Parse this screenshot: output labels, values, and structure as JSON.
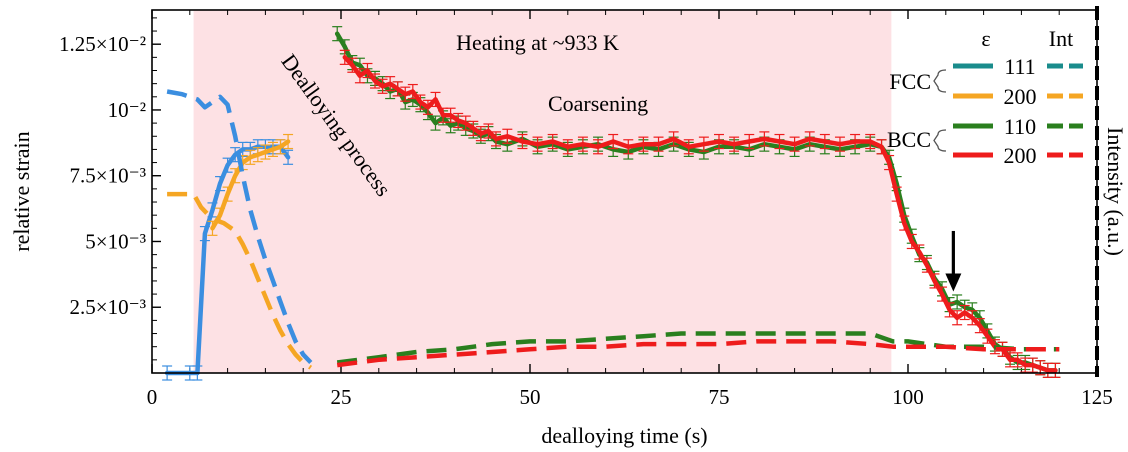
{
  "chart_data": {
    "type": "line",
    "xlabel": "dealloying time (s)",
    "ylabel": "relative strain",
    "y2label": "Intensity (a.u.)",
    "xlim": [
      0,
      125
    ],
    "ylim": [
      0,
      0.0138
    ],
    "x_ticks": [
      0,
      25,
      50,
      75,
      100,
      125
    ],
    "y_ticks": [
      {
        "value": 0.0025,
        "label": "2.5×10⁻³"
      },
      {
        "value": 0.005,
        "label": "5×10⁻³"
      },
      {
        "value": 0.0075,
        "label": "7.5×10⁻³"
      },
      {
        "value": 0.01,
        "label": "10⁻²"
      },
      {
        "value": 0.0125,
        "label": "1.25×10⁻²"
      }
    ],
    "shaded_region": {
      "x": [
        5.5,
        97.8
      ],
      "color": "#fde1e4"
    },
    "annotations": {
      "heating": "Heating at ~933 K",
      "coarsening": "Coarsening",
      "dealloying": "Dealloying process",
      "fcc": "FCC",
      "bcc": "BCC"
    },
    "arrow": {
      "x": 106,
      "y_from": 0.0054,
      "y_to": 0.0031
    },
    "legend": {
      "placement": "top-right",
      "header_strain": "ε",
      "header_int": "Int",
      "entries": [
        {
          "label": "111",
          "color": "#1a8c8c"
        },
        {
          "label": "200",
          "color": "#f5a623"
        },
        {
          "label": "110",
          "color": "#2a7f1e"
        },
        {
          "label": "200",
          "color": "#ee1c1c"
        }
      ]
    },
    "series": [
      {
        "id": "fcc111_strain",
        "color": "#3b8ee0",
        "dash": false,
        "errorbars": true,
        "x": [
          2,
          5,
          6,
          7,
          8,
          9,
          10,
          11,
          12,
          13,
          14,
          15,
          16,
          17,
          18
        ],
        "y": [
          0,
          0,
          0,
          0.0053,
          0.0062,
          0.0072,
          0.0079,
          0.0083,
          0.0085,
          0.0085,
          0.0086,
          0.0086,
          0.0086,
          0.0086,
          0.0082
        ]
      },
      {
        "id": "fcc200_strain",
        "color": "#f5a623",
        "dash": false,
        "errorbars": true,
        "x": [
          8,
          9,
          10,
          11,
          12,
          13,
          14,
          15,
          16,
          17,
          18
        ],
        "y": [
          0.0055,
          0.006,
          0.0068,
          0.0075,
          0.008,
          0.0082,
          0.0083,
          0.0084,
          0.0085,
          0.0086,
          0.0088
        ]
      },
      {
        "id": "fcc111_int",
        "color": "#3b8ee0",
        "dash": true,
        "errorbars": false,
        "x": [
          2,
          4,
          6,
          7,
          8,
          9,
          10,
          11,
          12,
          13,
          14,
          15,
          16,
          17,
          18,
          19,
          20,
          21
        ],
        "y": [
          0.0107,
          0.0106,
          0.0104,
          0.0101,
          0.0103,
          0.0105,
          0.0102,
          0.009,
          0.0075,
          0.0062,
          0.0052,
          0.0043,
          0.0035,
          0.0027,
          0.0019,
          0.0012,
          0.0007,
          0.0004
        ]
      },
      {
        "id": "fcc200_int",
        "color": "#f5a623",
        "dash": true,
        "errorbars": false,
        "x": [
          2,
          4,
          5.5,
          6.5,
          7.5,
          8.5,
          9.5,
          11,
          12,
          13,
          14,
          15,
          16,
          17,
          18,
          19,
          20,
          21
        ],
        "y": [
          0.0068,
          0.0068,
          0.0068,
          0.0063,
          0.006,
          0.0058,
          0.0057,
          0.0054,
          0.0049,
          0.0043,
          0.0036,
          0.0029,
          0.0022,
          0.0016,
          0.0011,
          0.0007,
          0.0004,
          0.0002
        ]
      },
      {
        "id": "bcc110_strain",
        "color": "#2a7f1e",
        "dash": false,
        "errorbars": true,
        "x": [
          24.5,
          25.5,
          26.5,
          27.5,
          28.5,
          29.5,
          30.5,
          31.5,
          32.5,
          33.5,
          34.5,
          35.5,
          36.5,
          37.5,
          38.5,
          39.5,
          40.5,
          41.5,
          42.5,
          43.5,
          44.5,
          45.5,
          47,
          49,
          51,
          53,
          55,
          57,
          59,
          61,
          63,
          65,
          67,
          69,
          71,
          73,
          75,
          77,
          79,
          81,
          83,
          85,
          87,
          89,
          91,
          93,
          95,
          96.5,
          97.5,
          98.5,
          99.5,
          100.5,
          101.5,
          102.5,
          103.5,
          104.5,
          105.5,
          106.5,
          107.5,
          108.5,
          109.5,
          110.5,
          111.5,
          112.5,
          113.5,
          114.5,
          115.5,
          116.5,
          117.5,
          118.5,
          119.5
        ],
        "y": [
          0.0129,
          0.0124,
          0.0118,
          0.0117,
          0.0113,
          0.0112,
          0.011,
          0.0107,
          0.0108,
          0.0103,
          0.0104,
          0.0102,
          0.0099,
          0.0095,
          0.0097,
          0.0094,
          0.0095,
          0.0093,
          0.0092,
          0.009,
          0.0091,
          0.0088,
          0.0087,
          0.0089,
          0.0086,
          0.0087,
          0.0085,
          0.0086,
          0.0087,
          0.0085,
          0.0084,
          0.0086,
          0.0085,
          0.0087,
          0.0085,
          0.0084,
          0.0086,
          0.0086,
          0.0085,
          0.0087,
          0.0086,
          0.0085,
          0.0087,
          0.0086,
          0.0085,
          0.0086,
          0.0087,
          0.0086,
          0.0082,
          0.0072,
          0.006,
          0.0052,
          0.0045,
          0.0042,
          0.0036,
          0.0032,
          0.0026,
          0.0027,
          0.0025,
          0.0024,
          0.0021,
          0.0016,
          0.0011,
          0.0009,
          0.0006,
          0.0004,
          0.0004,
          0.0003,
          0.0002,
          0.0001,
          0.0001
        ]
      },
      {
        "id": "bcc200_strain",
        "color": "#ee1c1c",
        "dash": false,
        "errorbars": true,
        "x": [
          25.5,
          26.5,
          27.5,
          28.5,
          29.5,
          30.5,
          31.5,
          32.5,
          33.5,
          34.5,
          35.5,
          36.5,
          37.5,
          38.5,
          39.5,
          40.5,
          41.5,
          42.5,
          43.5,
          44.5,
          45.5,
          47,
          49,
          51,
          53,
          55,
          57,
          59,
          61,
          63,
          65,
          67,
          69,
          71,
          73,
          75,
          77,
          79,
          81,
          83,
          85,
          87,
          89,
          91,
          93,
          95,
          96.5,
          97.5,
          98.5,
          99.5,
          100.5,
          101.5,
          102.5,
          103.5,
          104.5,
          105.5,
          106.5,
          107.5,
          108.5,
          109.5,
          110.5,
          111.5,
          112.5,
          113.5,
          114.5,
          115.5,
          116.5,
          117.5,
          118.5,
          119.5
        ],
        "y": [
          0.012,
          0.0117,
          0.0113,
          0.0115,
          0.0111,
          0.0109,
          0.011,
          0.0108,
          0.0106,
          0.0107,
          0.0103,
          0.0101,
          0.0104,
          0.0098,
          0.0098,
          0.0096,
          0.0095,
          0.0093,
          0.0091,
          0.0092,
          0.0089,
          0.009,
          0.0088,
          0.0087,
          0.0088,
          0.0086,
          0.0087,
          0.0086,
          0.0088,
          0.0086,
          0.0087,
          0.0087,
          0.0089,
          0.0086,
          0.0087,
          0.0088,
          0.0087,
          0.0088,
          0.0089,
          0.0088,
          0.0087,
          0.0089,
          0.0088,
          0.0087,
          0.0088,
          0.0088,
          0.0086,
          0.008,
          0.0068,
          0.0057,
          0.005,
          0.0046,
          0.0041,
          0.0035,
          0.003,
          0.0024,
          0.0021,
          0.0023,
          0.0021,
          0.0018,
          0.0014,
          0.001,
          0.0009,
          0.0005,
          0.0005,
          0.0003,
          0.0003,
          0.0002,
          0.0001,
          0.0001
        ]
      },
      {
        "id": "bcc110_int",
        "color": "#2a7f1e",
        "dash": true,
        "errorbars": false,
        "x": [
          24.5,
          30,
          35,
          40,
          45,
          50,
          55,
          60,
          65,
          70,
          75,
          80,
          85,
          90,
          95,
          98,
          100,
          105,
          110,
          115,
          120
        ],
        "y": [
          0.0004,
          0.0006,
          0.0008,
          0.0009,
          0.0011,
          0.0012,
          0.0012,
          0.0013,
          0.0014,
          0.0015,
          0.0015,
          0.0015,
          0.0015,
          0.0015,
          0.0015,
          0.0012,
          0.0012,
          0.001,
          0.001,
          0.0009,
          0.0009
        ]
      },
      {
        "id": "bcc200_int",
        "color": "#ee1c1c",
        "dash": true,
        "errorbars": false,
        "x": [
          24.5,
          30,
          35,
          40,
          45,
          50,
          55,
          60,
          65,
          70,
          75,
          80,
          85,
          90,
          95,
          98,
          100,
          105,
          110,
          115,
          120
        ],
        "y": [
          0.0003,
          0.0005,
          0.0006,
          0.0007,
          0.0008,
          0.0009,
          0.001,
          0.001,
          0.0011,
          0.0011,
          0.0011,
          0.0012,
          0.0012,
          0.0012,
          0.0011,
          0.001,
          0.001,
          0.001,
          0.0009,
          0.0009,
          0.0009
        ]
      }
    ]
  }
}
